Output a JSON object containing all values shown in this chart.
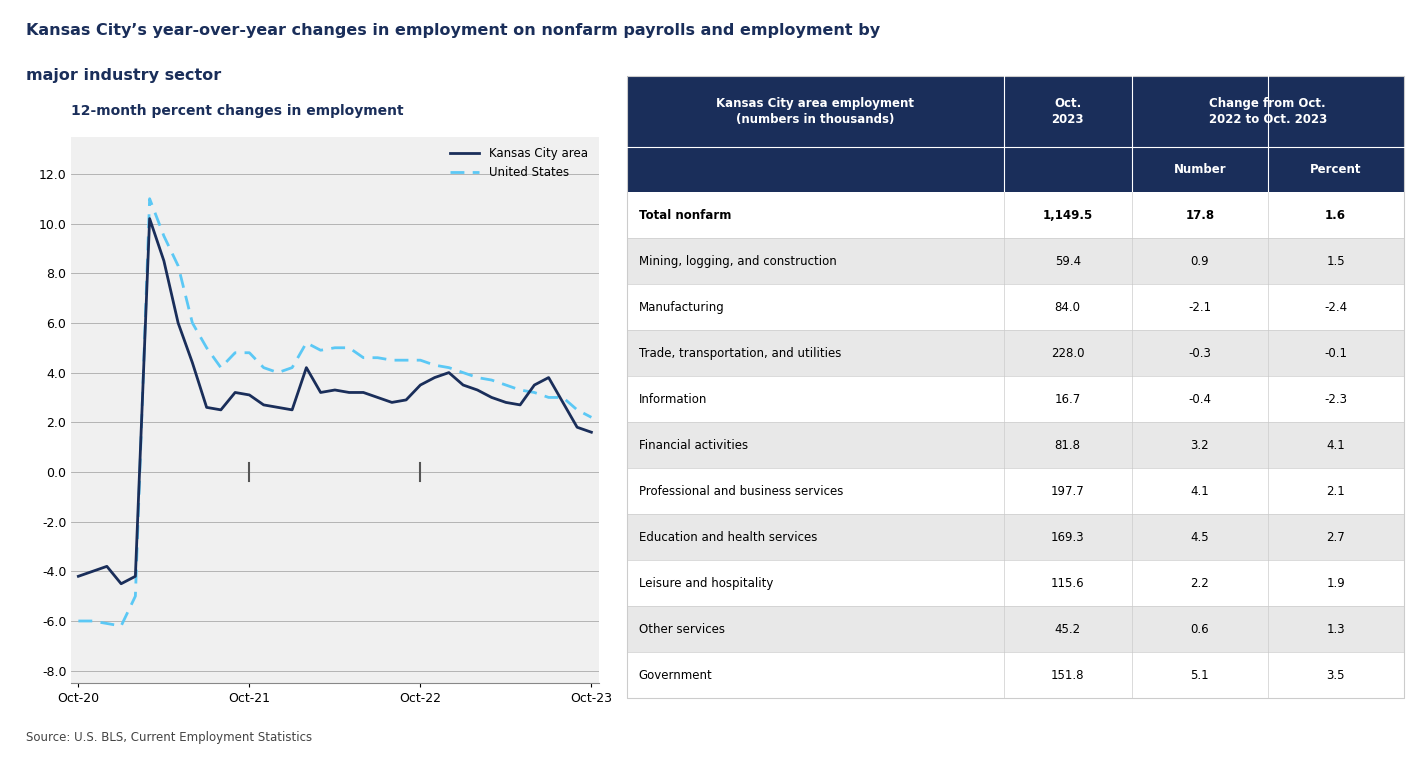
{
  "title_line1": "Kansas City’s year-over-year changes in employment on nonfarm payrolls and employment by",
  "title_line2": "major industry sector",
  "chart_subtitle": "12-month percent changes in employment",
  "source": "Source: U.S. BLS, Current Employment Statistics",
  "kc_x": [
    0,
    1,
    2,
    3,
    4,
    5,
    6,
    7,
    8,
    9,
    10,
    11,
    12,
    13,
    14,
    15,
    16,
    17,
    18,
    19,
    20,
    21,
    22,
    23,
    24,
    25,
    26,
    27,
    28,
    29,
    30,
    31,
    32,
    33,
    34,
    35,
    36
  ],
  "kc_y": [
    -4.2,
    -4.0,
    -3.8,
    -4.5,
    -4.2,
    10.2,
    8.5,
    6.0,
    4.4,
    2.6,
    2.5,
    3.2,
    3.1,
    2.7,
    2.6,
    2.5,
    4.2,
    3.2,
    3.3,
    3.2,
    3.2,
    3.0,
    2.8,
    2.9,
    3.5,
    3.8,
    4.0,
    3.5,
    3.3,
    3.0,
    2.8,
    2.7,
    3.5,
    3.8,
    2.8,
    1.8,
    1.6
  ],
  "us_x": [
    0,
    1,
    2,
    3,
    4,
    5,
    6,
    7,
    8,
    9,
    10,
    11,
    12,
    13,
    14,
    15,
    16,
    17,
    18,
    19,
    20,
    21,
    22,
    23,
    24,
    25,
    26,
    27,
    28,
    29,
    30,
    31,
    32,
    33,
    34,
    35,
    36
  ],
  "us_y": [
    -6.0,
    -6.0,
    -6.1,
    -6.2,
    -5.0,
    11.0,
    9.5,
    8.3,
    6.0,
    5.0,
    4.2,
    4.8,
    4.8,
    4.2,
    4.0,
    4.2,
    5.2,
    4.9,
    5.0,
    5.0,
    4.6,
    4.6,
    4.5,
    4.5,
    4.5,
    4.3,
    4.2,
    4.0,
    3.8,
    3.7,
    3.5,
    3.3,
    3.2,
    3.0,
    3.0,
    2.5,
    2.2
  ],
  "x_ticks": [
    0,
    12,
    24,
    36
  ],
  "x_tick_labels": [
    "Oct-20",
    "Oct-21",
    "Oct-22",
    "Oct-23"
  ],
  "y_ticks": [
    -8.0,
    -6.0,
    -4.0,
    -2.0,
    0.0,
    2.0,
    4.0,
    6.0,
    8.0,
    10.0,
    12.0
  ],
  "ylim": [
    -8.5,
    13.5
  ],
  "xlim": [
    -0.5,
    36.5
  ],
  "kc_color": "#1a2e5a",
  "us_color": "#5bc8f5",
  "table_header_color": "#1a2e5a",
  "table_subheader_color": "#2d4a7a",
  "table_header_text_color": "#ffffff",
  "table_alt_row_color": "#e8e8e8",
  "table_row_color": "#ffffff",
  "title_color": "#1a2e5a",
  "table_rows": [
    [
      "Total nonfarm",
      "1,149.5",
      "17.8",
      "1.6",
      false
    ],
    [
      "Mining, logging, and construction",
      "59.4",
      "0.9",
      "1.5",
      true
    ],
    [
      "Manufacturing",
      "84.0",
      "-2.1",
      "-2.4",
      false
    ],
    [
      "Trade, transportation, and utilities",
      "228.0",
      "-0.3",
      "-0.1",
      true
    ],
    [
      "Information",
      "16.7",
      "-0.4",
      "-2.3",
      false
    ],
    [
      "Financial activities",
      "81.8",
      "3.2",
      "4.1",
      true
    ],
    [
      "Professional and business services",
      "197.7",
      "4.1",
      "2.1",
      false
    ],
    [
      "Education and health services",
      "169.3",
      "4.5",
      "2.7",
      true
    ],
    [
      "Leisure and hospitality",
      "115.6",
      "2.2",
      "1.9",
      false
    ],
    [
      "Other services",
      "45.2",
      "0.6",
      "1.3",
      true
    ],
    [
      "Government",
      "151.8",
      "5.1",
      "3.5",
      false
    ]
  ]
}
